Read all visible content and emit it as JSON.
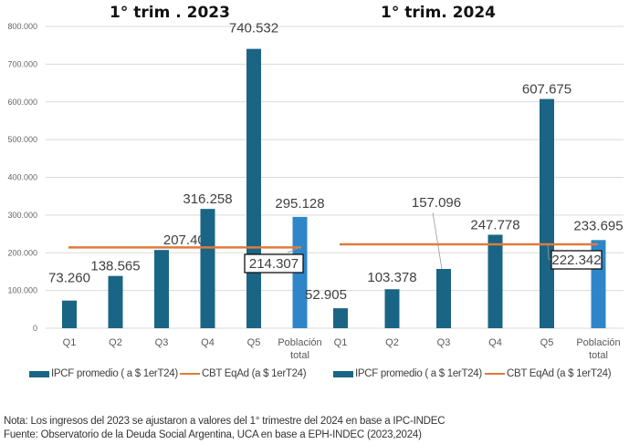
{
  "chart_data": [
    {
      "type": "bar",
      "title": "1° trim . 2023",
      "categories": [
        "Q1",
        "Q2",
        "Q3",
        "Q4",
        "Q5",
        "Población total"
      ],
      "series": [
        {
          "name": "IPCF promedio ( a $ 1erT24)",
          "type": "bar",
          "values": [
            73260,
            138565,
            207401,
            316258,
            740532,
            295128
          ],
          "labels": [
            "73.260",
            "138.565",
            "207.401",
            "316.258",
            "740.532",
            "295.128"
          ]
        },
        {
          "name": "CBT EqAd (a $ 1erT24)",
          "type": "line",
          "value": 214307,
          "label": "214.307"
        }
      ],
      "ylim": [
        0,
        800000
      ],
      "yticks": [
        0,
        100000,
        200000,
        300000,
        400000,
        500000,
        600000,
        700000,
        800000
      ],
      "ytick_labels": [
        "0",
        "100.000",
        "200.000",
        "300.000",
        "400.000",
        "500.000",
        "600.000",
        "700.000",
        "800.000"
      ],
      "grid": true,
      "xlabel": "",
      "ylabel": ""
    },
    {
      "type": "bar",
      "title": "1° trim. 2024",
      "categories": [
        "Q1",
        "Q2",
        "Q3",
        "Q4",
        "Q5",
        "Población total"
      ],
      "series": [
        {
          "name": "IPCF promedio ( a $ 1erT24)",
          "type": "bar",
          "values": [
            52905,
            103378,
            157096,
            247778,
            607675,
            233695
          ],
          "labels": [
            "52.905",
            "103.378",
            "157.096",
            "247.778",
            "607.675",
            "233.695"
          ]
        },
        {
          "name": "CBT EqAd (a $ 1erT24)",
          "type": "line",
          "value": 222342,
          "label": "222.342"
        }
      ],
      "ylim": [
        0,
        800000
      ],
      "grid": true,
      "xlabel": "",
      "ylabel": ""
    }
  ],
  "colors": {
    "bar": "#1a6585",
    "total_bar": "#2e86c8",
    "line": "#e07a3c",
    "grid": "#d9d9d9"
  },
  "legend": [
    {
      "label": "IPCF promedio ( a $ 1erT24)",
      "kind": "bar"
    },
    {
      "label": "CBT EqAd (a $ 1erT24)",
      "kind": "line"
    },
    {
      "label": "IPCF promedio ( a $ 1erT24)",
      "kind": "bar"
    },
    {
      "label": "CBT EqAd (a $ 1erT24)",
      "kind": "line"
    }
  ],
  "notes": {
    "nota": "Nota: Los ingresos del 2023 se ajustaron a valores del 1°  trimestre del 2024 en base a IPC-INDEC",
    "fuente": "Fuente: Observatorio de la Deuda Social Argentina, UCA en base a EPH-INDEC (2023,2024)"
  }
}
